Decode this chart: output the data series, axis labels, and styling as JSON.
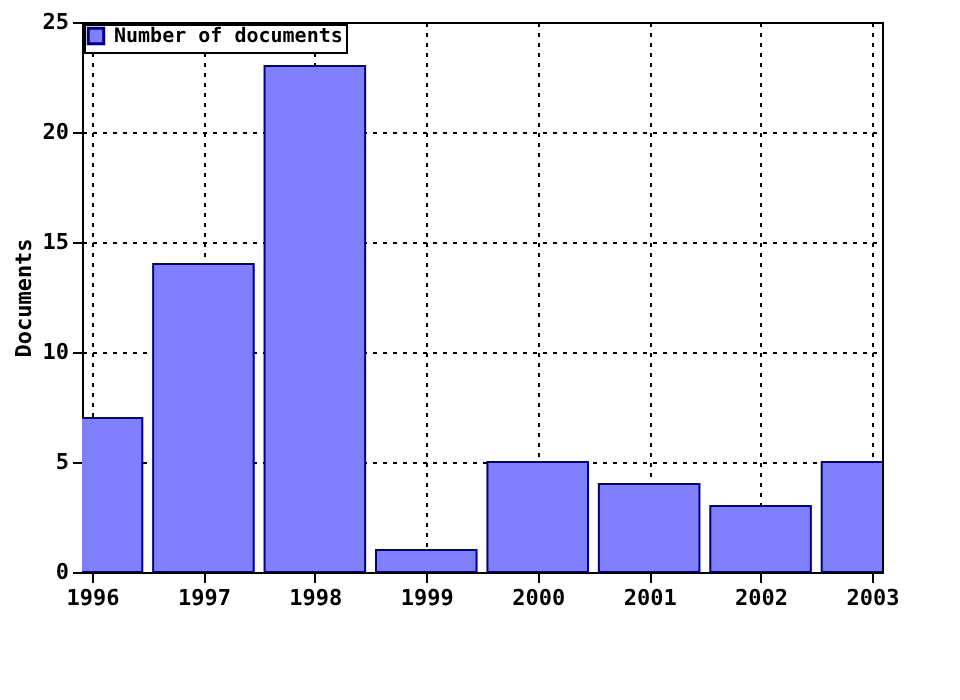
{
  "chart_data": {
    "type": "bar",
    "ylabel": "Documents",
    "x": [
      1996,
      1997,
      1998,
      1999,
      2000,
      2001,
      2002,
      2003
    ],
    "series": [
      {
        "name": "Number of documents",
        "color": "#8080ff",
        "values": [
          7,
          14,
          23,
          1,
          5,
          4,
          3,
          5
        ]
      }
    ],
    "xlim": [
      1996,
      2003
    ],
    "xticks": [
      1996,
      1997,
      1998,
      1999,
      2000,
      2001,
      2002,
      2003
    ],
    "ylim": [
      0,
      25
    ],
    "yticks": [
      0,
      5,
      10,
      15,
      20,
      25
    ],
    "grid": true,
    "legend": "top left"
  }
}
